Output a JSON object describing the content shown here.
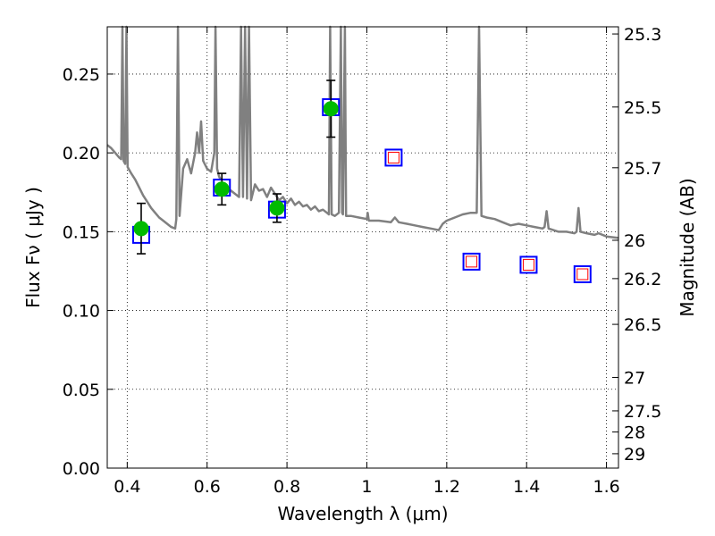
{
  "chart_data": {
    "type": "scatter",
    "xlabel": "Wavelength  λ (μm)",
    "ylabel": "Flux  Fν  ( μJy )",
    "y2label": "Magnitude (AB)",
    "xlim": [
      0.35,
      1.63
    ],
    "ylim": [
      0.0,
      0.28
    ],
    "grid": true,
    "x_ticks": [
      {
        "value": 0.4,
        "label": "0.4"
      },
      {
        "value": 0.6,
        "label": "0.6"
      },
      {
        "value": 0.8,
        "label": "0.8"
      },
      {
        "value": 1.0,
        "label": "1"
      },
      {
        "value": 1.2,
        "label": "1.2"
      },
      {
        "value": 1.4,
        "label": "1.4"
      },
      {
        "value": 1.6,
        "label": "1.6"
      }
    ],
    "y_ticks": [
      {
        "value": 0.0,
        "label": "0.00"
      },
      {
        "value": 0.05,
        "label": "0.05"
      },
      {
        "value": 0.1,
        "label": "0.10"
      },
      {
        "value": 0.15,
        "label": "0.15"
      },
      {
        "value": 0.2,
        "label": "0.20"
      },
      {
        "value": 0.25,
        "label": "0.25"
      }
    ],
    "magnitude_ticks": [
      {
        "mag": 25.3,
        "label": "25.3"
      },
      {
        "mag": 25.5,
        "label": "25.5"
      },
      {
        "mag": 25.7,
        "label": "25.7"
      },
      {
        "mag": 26.0,
        "label": "26"
      },
      {
        "mag": 26.2,
        "label": "26.2"
      },
      {
        "mag": 26.5,
        "label": "26.5"
      },
      {
        "mag": 27.0,
        "label": "27"
      },
      {
        "mag": 27.5,
        "label": "27.5"
      },
      {
        "mag": 28.0,
        "label": "28"
      },
      {
        "mag": 29.0,
        "label": "29"
      }
    ],
    "observed": {
      "color": "#00bb00",
      "points": [
        {
          "x": 0.435,
          "y": 0.152,
          "err": 0.016
        },
        {
          "x": 0.637,
          "y": 0.177,
          "err": 0.01
        },
        {
          "x": 0.775,
          "y": 0.165,
          "err": 0.009
        },
        {
          "x": 0.91,
          "y": 0.228,
          "err": 0.018
        }
      ]
    },
    "model_bands": {
      "outer_color": "#0000ff",
      "inner_color": "#ff0000",
      "points": [
        {
          "x": 0.435,
          "y": 0.148,
          "observed": true
        },
        {
          "x": 0.637,
          "y": 0.178,
          "observed": true
        },
        {
          "x": 0.775,
          "y": 0.164,
          "observed": true
        },
        {
          "x": 0.91,
          "y": 0.229,
          "observed": true
        },
        {
          "x": 1.067,
          "y": 0.197,
          "observed": false
        },
        {
          "x": 1.262,
          "y": 0.131,
          "observed": false
        },
        {
          "x": 1.405,
          "y": 0.129,
          "observed": false
        },
        {
          "x": 1.54,
          "y": 0.123,
          "observed": false
        }
      ]
    },
    "template_spectrum": {
      "color": "#808080",
      "points": [
        [
          0.35,
          0.205
        ],
        [
          0.36,
          0.203
        ],
        [
          0.37,
          0.2
        ],
        [
          0.38,
          0.197
        ],
        [
          0.385,
          0.196
        ],
        [
          0.388,
          0.28
        ],
        [
          0.391,
          0.195
        ],
        [
          0.395,
          0.193
        ],
        [
          0.398,
          0.28
        ],
        [
          0.401,
          0.191
        ],
        [
          0.41,
          0.187
        ],
        [
          0.42,
          0.183
        ],
        [
          0.43,
          0.178
        ],
        [
          0.44,
          0.173
        ],
        [
          0.45,
          0.169
        ],
        [
          0.46,
          0.165
        ],
        [
          0.47,
          0.162
        ],
        [
          0.48,
          0.159
        ],
        [
          0.49,
          0.157
        ],
        [
          0.5,
          0.155
        ],
        [
          0.51,
          0.153
        ],
        [
          0.52,
          0.152
        ],
        [
          0.523,
          0.158
        ],
        [
          0.527,
          0.28
        ],
        [
          0.531,
          0.16
        ],
        [
          0.54,
          0.19
        ],
        [
          0.55,
          0.196
        ],
        [
          0.56,
          0.187
        ],
        [
          0.57,
          0.2
        ],
        [
          0.575,
          0.213
        ],
        [
          0.58,
          0.2
        ],
        [
          0.585,
          0.22
        ],
        [
          0.59,
          0.195
        ],
        [
          0.6,
          0.19
        ],
        [
          0.61,
          0.188
        ],
        [
          0.618,
          0.2
        ],
        [
          0.621,
          0.28
        ],
        [
          0.625,
          0.19
        ],
        [
          0.63,
          0.185
        ],
        [
          0.64,
          0.18
        ],
        [
          0.65,
          0.178
        ],
        [
          0.66,
          0.176
        ],
        [
          0.67,
          0.174
        ],
        [
          0.68,
          0.172
        ],
        [
          0.685,
          0.28
        ],
        [
          0.69,
          0.172
        ],
        [
          0.695,
          0.28
        ],
        [
          0.7,
          0.171
        ],
        [
          0.705,
          0.28
        ],
        [
          0.71,
          0.17
        ],
        [
          0.72,
          0.18
        ],
        [
          0.73,
          0.176
        ],
        [
          0.74,
          0.177
        ],
        [
          0.75,
          0.172
        ],
        [
          0.76,
          0.178
        ],
        [
          0.77,
          0.174
        ],
        [
          0.78,
          0.17
        ],
        [
          0.79,
          0.172
        ],
        [
          0.8,
          0.168
        ],
        [
          0.81,
          0.171
        ],
        [
          0.82,
          0.167
        ],
        [
          0.83,
          0.169
        ],
        [
          0.84,
          0.166
        ],
        [
          0.85,
          0.167
        ],
        [
          0.86,
          0.164
        ],
        [
          0.87,
          0.166
        ],
        [
          0.88,
          0.163
        ],
        [
          0.89,
          0.164
        ],
        [
          0.9,
          0.162
        ],
        [
          0.905,
          0.161
        ],
        [
          0.908,
          0.28
        ],
        [
          0.912,
          0.161
        ],
        [
          0.92,
          0.16
        ],
        [
          0.93,
          0.162
        ],
        [
          0.935,
          0.28
        ],
        [
          0.938,
          0.162
        ],
        [
          0.94,
          0.161
        ],
        [
          0.945,
          0.28
        ],
        [
          0.948,
          0.16
        ],
        [
          0.96,
          0.16
        ],
        [
          0.98,
          0.159
        ],
        [
          1.0,
          0.158
        ],
        [
          1.002,
          0.162
        ],
        [
          1.005,
          0.157
        ],
        [
          1.03,
          0.157
        ],
        [
          1.06,
          0.156
        ],
        [
          1.07,
          0.159
        ],
        [
          1.08,
          0.156
        ],
        [
          1.1,
          0.155
        ],
        [
          1.12,
          0.154
        ],
        [
          1.14,
          0.153
        ],
        [
          1.16,
          0.152
        ],
        [
          1.18,
          0.151
        ],
        [
          1.19,
          0.155
        ],
        [
          1.2,
          0.157
        ],
        [
          1.22,
          0.159
        ],
        [
          1.24,
          0.161
        ],
        [
          1.26,
          0.162
        ],
        [
          1.275,
          0.162
        ],
        [
          1.281,
          0.28
        ],
        [
          1.287,
          0.16
        ],
        [
          1.3,
          0.159
        ],
        [
          1.32,
          0.158
        ],
        [
          1.34,
          0.156
        ],
        [
          1.36,
          0.154
        ],
        [
          1.38,
          0.155
        ],
        [
          1.4,
          0.154
        ],
        [
          1.42,
          0.153
        ],
        [
          1.44,
          0.152
        ],
        [
          1.445,
          0.153
        ],
        [
          1.45,
          0.163
        ],
        [
          1.455,
          0.152
        ],
        [
          1.48,
          0.15
        ],
        [
          1.5,
          0.15
        ],
        [
          1.52,
          0.149
        ],
        [
          1.525,
          0.15
        ],
        [
          1.53,
          0.165
        ],
        [
          1.535,
          0.15
        ],
        [
          1.55,
          0.149
        ],
        [
          1.57,
          0.148
        ],
        [
          1.58,
          0.149
        ],
        [
          1.6,
          0.147
        ],
        [
          1.63,
          0.146
        ]
      ]
    }
  }
}
